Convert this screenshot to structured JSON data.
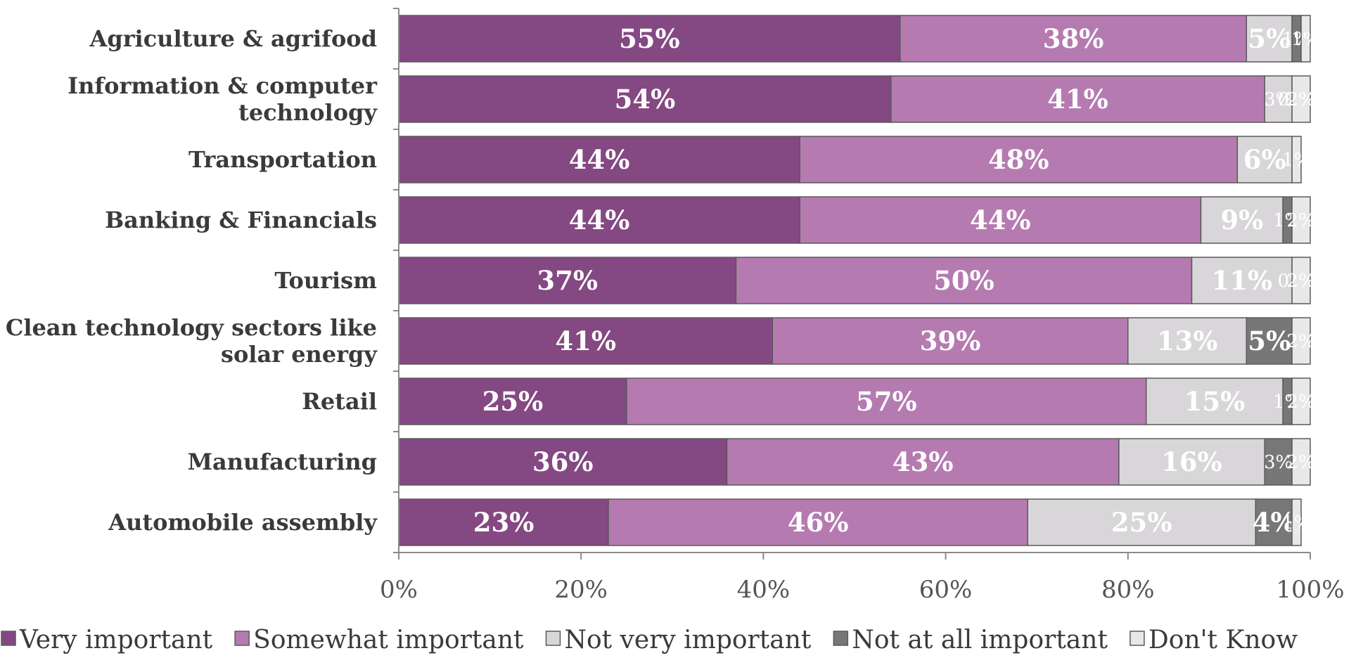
{
  "chart_data": {
    "type": "bar",
    "orientation": "horizontal",
    "stacked": true,
    "categories": [
      "Agriculture & agrifood",
      "Information & computer technology",
      "Transportation",
      "Banking & Financials",
      "Tourism",
      "Clean technology sectors like solar energy",
      "Retail",
      "Manufacturing",
      "Automobile assembly"
    ],
    "category_lines": [
      [
        "Agriculture & agrifood"
      ],
      [
        "Information & computer",
        "technology"
      ],
      [
        "Transportation"
      ],
      [
        "Banking & Financials"
      ],
      [
        "Tourism"
      ],
      [
        "Clean technology sectors like",
        "solar energy"
      ],
      [
        "Retail"
      ],
      [
        "Manufacturing"
      ],
      [
        "Automobile assembly"
      ]
    ],
    "series": [
      {
        "name": "Very important",
        "color": "#844882",
        "values": [
          55,
          54,
          44,
          44,
          37,
          41,
          25,
          36,
          23
        ]
      },
      {
        "name": "Somewhat important",
        "color": "#b57bb1",
        "values": [
          38,
          41,
          48,
          44,
          50,
          39,
          57,
          43,
          46
        ]
      },
      {
        "name": "Not very important",
        "color": "#d8d6d8",
        "values": [
          5,
          3,
          6,
          9,
          11,
          13,
          15,
          16,
          25
        ]
      },
      {
        "name": "Not at all important",
        "color": "#777777",
        "values": [
          1,
          0,
          0,
          1,
          0,
          5,
          1,
          3,
          4
        ]
      },
      {
        "name": "Don't Know",
        "color": "#e8e8e8",
        "values": [
          1,
          2,
          1,
          2,
          2,
          2,
          2,
          2,
          1
        ]
      }
    ],
    "data_labels": [
      [
        "55%",
        "38%",
        "5%",
        "1%",
        "1%"
      ],
      [
        "54%",
        "41%",
        "3%",
        "0%",
        "2%"
      ],
      [
        "44%",
        "48%",
        "6%",
        "",
        "1%"
      ],
      [
        "44%",
        "44%",
        "9%",
        "1%",
        "2%"
      ],
      [
        "37%",
        "50%",
        "11%",
        "0%",
        "2%"
      ],
      [
        "41%",
        "39%",
        "13%",
        "5%",
        "2%"
      ],
      [
        "25%",
        "57%",
        "15%",
        "1%",
        "2%"
      ],
      [
        "36%",
        "43%",
        "16%",
        "3%",
        "2%"
      ],
      [
        "23%",
        "46%",
        "25%",
        "4%",
        "1%"
      ]
    ],
    "xlim": [
      0,
      100
    ],
    "x_ticks": [
      0,
      20,
      40,
      60,
      80,
      100
    ],
    "x_tick_labels": [
      "0%",
      "20%",
      "40%",
      "60%",
      "80%",
      "100%"
    ],
    "title": "",
    "xlabel": "",
    "ylabel": "",
    "grid": false,
    "legend_position": "bottom"
  }
}
